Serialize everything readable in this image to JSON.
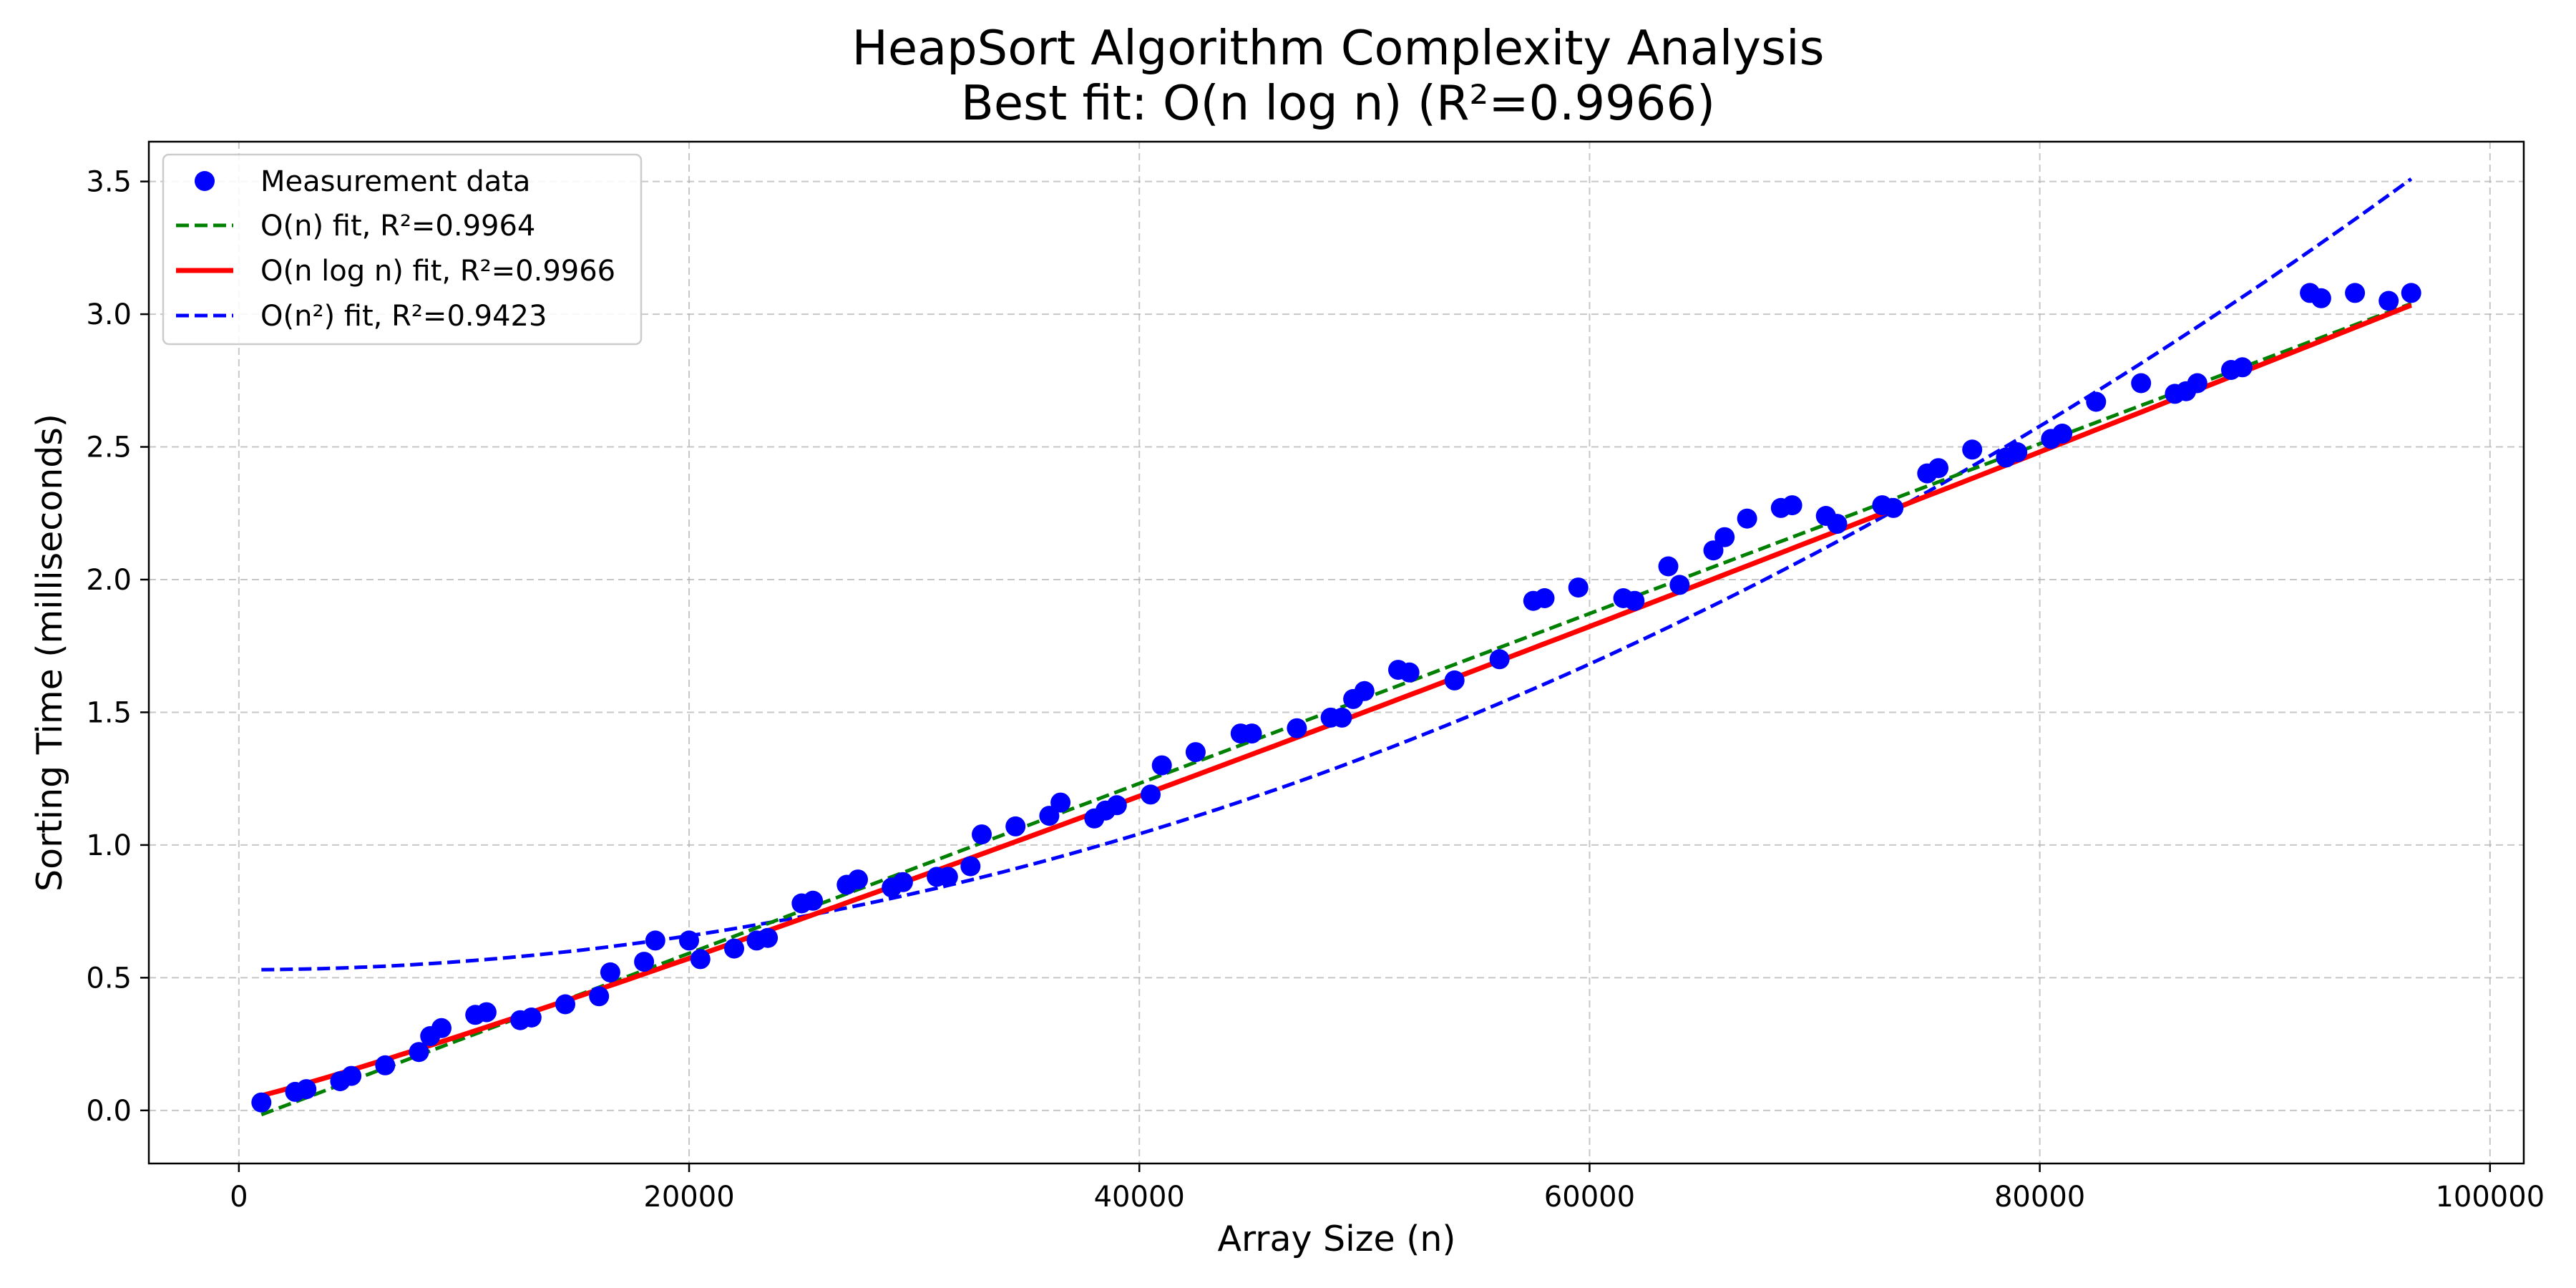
{
  "chart_data": {
    "type": "scatter",
    "title": "HeapSort Algorithm Complexity Analysis",
    "subtitle": "Best fit: O(n log n) (R²=0.9966)",
    "xlabel": "Array Size (n)",
    "ylabel": "Sorting Time (milliseconds)",
    "xlim": [
      -4000,
      101500
    ],
    "ylim": [
      -0.2,
      3.65
    ],
    "x_ticks": [
      0,
      20000,
      40000,
      60000,
      80000,
      100000
    ],
    "y_ticks": [
      0.0,
      0.5,
      1.0,
      1.5,
      2.0,
      2.5,
      3.0,
      3.5
    ],
    "x_tick_labels": [
      "0",
      "20000",
      "40000",
      "60000",
      "80000",
      "100000"
    ],
    "y_tick_labels": [
      "0.0",
      "0.5",
      "1.0",
      "1.5",
      "2.0",
      "2.5",
      "3.0",
      "3.5"
    ],
    "grid": true,
    "legend_position": "top-left",
    "series": [
      {
        "name": "Measurement data",
        "kind": "scatter",
        "color": "#0000ff",
        "points": [
          [
            1000,
            0.03
          ],
          [
            2500,
            0.07
          ],
          [
            3000,
            0.08
          ],
          [
            4500,
            0.11
          ],
          [
            5000,
            0.13
          ],
          [
            6500,
            0.17
          ],
          [
            8000,
            0.22
          ],
          [
            8500,
            0.28
          ],
          [
            9000,
            0.31
          ],
          [
            10500,
            0.36
          ],
          [
            11000,
            0.37
          ],
          [
            12500,
            0.34
          ],
          [
            13000,
            0.35
          ],
          [
            14500,
            0.4
          ],
          [
            16000,
            0.43
          ],
          [
            16500,
            0.52
          ],
          [
            18000,
            0.56
          ],
          [
            18500,
            0.64
          ],
          [
            20000,
            0.64
          ],
          [
            20500,
            0.57
          ],
          [
            22000,
            0.61
          ],
          [
            23000,
            0.64
          ],
          [
            23500,
            0.65
          ],
          [
            25000,
            0.78
          ],
          [
            25500,
            0.79
          ],
          [
            27000,
            0.85
          ],
          [
            27500,
            0.87
          ],
          [
            29000,
            0.84
          ],
          [
            29500,
            0.86
          ],
          [
            31000,
            0.88
          ],
          [
            31500,
            0.88
          ],
          [
            32500,
            0.92
          ],
          [
            33000,
            1.04
          ],
          [
            34500,
            1.07
          ],
          [
            36000,
            1.11
          ],
          [
            36500,
            1.16
          ],
          [
            38000,
            1.1
          ],
          [
            38500,
            1.13
          ],
          [
            39000,
            1.15
          ],
          [
            40500,
            1.19
          ],
          [
            41000,
            1.3
          ],
          [
            42500,
            1.35
          ],
          [
            44500,
            1.42
          ],
          [
            45000,
            1.42
          ],
          [
            47000,
            1.44
          ],
          [
            48500,
            1.48
          ],
          [
            49000,
            1.48
          ],
          [
            49500,
            1.55
          ],
          [
            50000,
            1.58
          ],
          [
            51500,
            1.66
          ],
          [
            52000,
            1.65
          ],
          [
            54000,
            1.62
          ],
          [
            56000,
            1.7
          ],
          [
            57500,
            1.92
          ],
          [
            58000,
            1.93
          ],
          [
            59500,
            1.97
          ],
          [
            61500,
            1.93
          ],
          [
            62000,
            1.92
          ],
          [
            63500,
            2.05
          ],
          [
            64000,
            1.98
          ],
          [
            65500,
            2.11
          ],
          [
            66000,
            2.16
          ],
          [
            67000,
            2.23
          ],
          [
            68500,
            2.27
          ],
          [
            69000,
            2.28
          ],
          [
            70500,
            2.24
          ],
          [
            71000,
            2.21
          ],
          [
            73000,
            2.28
          ],
          [
            73500,
            2.27
          ],
          [
            75000,
            2.4
          ],
          [
            75500,
            2.42
          ],
          [
            77000,
            2.49
          ],
          [
            78500,
            2.46
          ],
          [
            79000,
            2.48
          ],
          [
            80500,
            2.53
          ],
          [
            81000,
            2.55
          ],
          [
            82500,
            2.67
          ],
          [
            84500,
            2.74
          ],
          [
            86000,
            2.7
          ],
          [
            86500,
            2.71
          ],
          [
            87000,
            2.74
          ],
          [
            88500,
            2.79
          ],
          [
            89000,
            2.8
          ],
          [
            92000,
            3.08
          ],
          [
            92500,
            3.06
          ],
          [
            94000,
            3.08
          ],
          [
            95500,
            3.05
          ],
          [
            96500,
            3.08
          ]
        ]
      },
      {
        "name": "O(n) fit, R²=0.9964",
        "kind": "line",
        "style": "dashed",
        "color": "#008000",
        "equation": {
          "form": "a*n + b",
          "a": 3.2e-05,
          "b": -0.048
        }
      },
      {
        "name": "O(n log n) fit, R²=0.9966",
        "kind": "line",
        "style": "solid",
        "color": "#ff0000",
        "equation": {
          "form": "a*n*log(n) + b",
          "a": 2.706e-06,
          "b": 0.037
        }
      },
      {
        "name": "O(n²) fit, R²=0.9423",
        "kind": "line",
        "style": "dashed",
        "color": "#0000ff",
        "equation": {
          "form": "a*n^2 + b",
          "a": 3.2e-10,
          "b": 0.53
        }
      }
    ]
  }
}
